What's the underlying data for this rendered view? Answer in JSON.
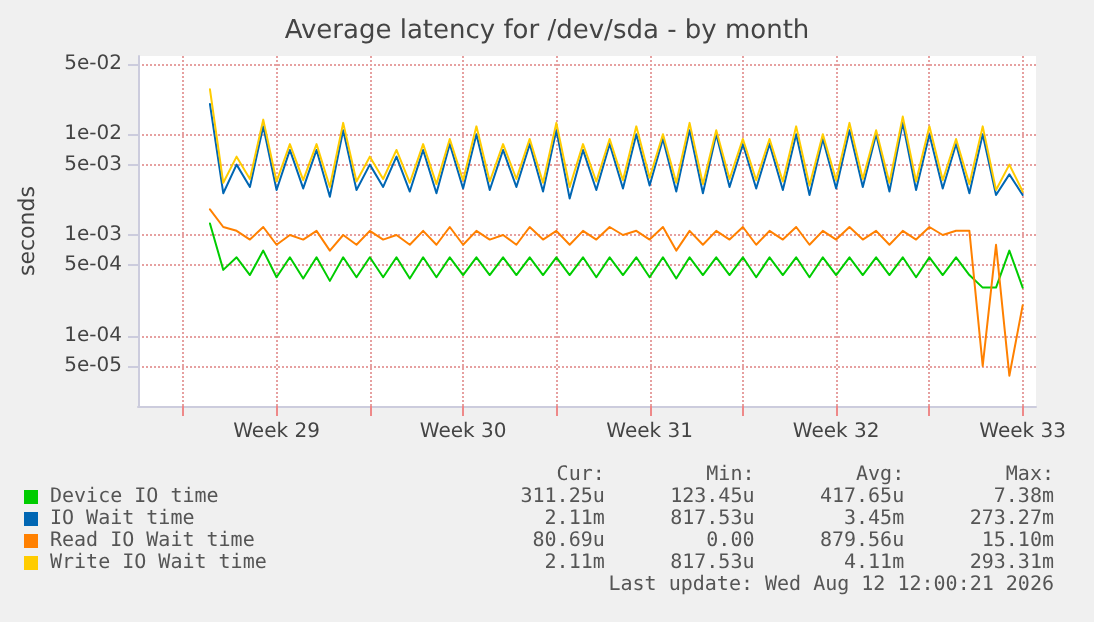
{
  "chart_data": {
    "type": "line",
    "title": "Average latency for /dev/sda - by month",
    "ylabel": "seconds",
    "x": [
      "2026-07-12T12:00",
      "2026-07-13T00:00",
      "2026-07-13T12:00",
      "2026-07-14T00:00",
      "2026-07-14T12:00",
      "2026-07-15T00:00",
      "2026-07-15T12:00",
      "2026-07-16T00:00",
      "2026-07-16T12:00",
      "2026-07-17T00:00",
      "2026-07-17T12:00",
      "2026-07-18T00:00",
      "2026-07-18T12:00",
      "2026-07-19T00:00",
      "2026-07-19T12:00",
      "2026-07-20T00:00",
      "2026-07-20T12:00",
      "2026-07-21T00:00",
      "2026-07-21T12:00",
      "2026-07-22T00:00",
      "2026-07-22T12:00",
      "2026-07-23T00:00",
      "2026-07-23T12:00",
      "2026-07-24T00:00",
      "2026-07-24T12:00",
      "2026-07-25T00:00",
      "2026-07-25T12:00",
      "2026-07-26T00:00",
      "2026-07-26T12:00",
      "2026-07-27T00:00",
      "2026-07-27T12:00",
      "2026-07-28T00:00",
      "2026-07-28T12:00",
      "2026-07-29T00:00",
      "2026-07-29T12:00",
      "2026-07-30T00:00",
      "2026-07-30T12:00",
      "2026-07-31T00:00",
      "2026-07-31T12:00",
      "2026-08-01T00:00",
      "2026-08-01T12:00",
      "2026-08-02T00:00",
      "2026-08-02T12:00",
      "2026-08-03T00:00",
      "2026-08-03T12:00",
      "2026-08-04T00:00",
      "2026-08-04T12:00",
      "2026-08-05T00:00",
      "2026-08-05T12:00",
      "2026-08-06T00:00",
      "2026-08-06T12:00",
      "2026-08-07T00:00",
      "2026-08-07T12:00",
      "2026-08-08T00:00",
      "2026-08-08T12:00",
      "2026-08-09T00:00",
      "2026-08-09T12:00",
      "2026-08-10T00:00",
      "2026-08-10T12:00",
      "2026-08-11T00:00",
      "2026-08-11T12:00",
      "2026-08-12T00:00"
    ],
    "series": [
      {
        "name": "Device IO time",
        "color": "#00cc00",
        "values": [
          0.0013,
          0.00045,
          0.0006,
          0.0004,
          0.0007,
          0.00038,
          0.0006,
          0.00037,
          0.0006,
          0.00035,
          0.0006,
          0.00038,
          0.0006,
          0.00038,
          0.0006,
          0.00037,
          0.0006,
          0.00038,
          0.0006,
          0.0004,
          0.0006,
          0.0004,
          0.0006,
          0.0004,
          0.0006,
          0.0004,
          0.0006,
          0.0004,
          0.0006,
          0.00038,
          0.0006,
          0.0004,
          0.0006,
          0.00038,
          0.0006,
          0.00037,
          0.0006,
          0.0004,
          0.0006,
          0.0004,
          0.0006,
          0.00038,
          0.0006,
          0.0004,
          0.0006,
          0.00038,
          0.0006,
          0.0004,
          0.0006,
          0.0004,
          0.0006,
          0.0004,
          0.0006,
          0.00038,
          0.0006,
          0.0004,
          0.0006,
          0.0004,
          0.0003,
          0.0003,
          0.0007,
          0.0003
        ]
      },
      {
        "name": "IO Wait time",
        "color": "#0066b3",
        "values": [
          0.02,
          0.0026,
          0.005,
          0.003,
          0.012,
          0.0028,
          0.007,
          0.0029,
          0.007,
          0.0024,
          0.011,
          0.0028,
          0.005,
          0.003,
          0.006,
          0.0027,
          0.007,
          0.0026,
          0.008,
          0.0029,
          0.01,
          0.0028,
          0.007,
          0.003,
          0.008,
          0.0027,
          0.011,
          0.0023,
          0.007,
          0.0028,
          0.008,
          0.0029,
          0.01,
          0.0031,
          0.009,
          0.0027,
          0.011,
          0.0026,
          0.01,
          0.003,
          0.008,
          0.0029,
          0.008,
          0.0028,
          0.01,
          0.0025,
          0.009,
          0.0029,
          0.011,
          0.003,
          0.01,
          0.0027,
          0.013,
          0.0028,
          0.01,
          0.0029,
          0.008,
          0.0026,
          0.01,
          0.0025,
          0.004,
          0.0025
        ]
      },
      {
        "name": "Read IO Wait time",
        "color": "#ff8000",
        "values": [
          0.0018,
          0.0012,
          0.0011,
          0.0009,
          0.0012,
          0.0008,
          0.001,
          0.0009,
          0.0011,
          0.0007,
          0.001,
          0.0008,
          0.0011,
          0.0009,
          0.001,
          0.0008,
          0.0011,
          0.0008,
          0.0012,
          0.0008,
          0.0011,
          0.0009,
          0.001,
          0.0008,
          0.0012,
          0.0009,
          0.0011,
          0.0008,
          0.0011,
          0.0009,
          0.0012,
          0.001,
          0.0011,
          0.0009,
          0.0012,
          0.0007,
          0.0011,
          0.0008,
          0.0011,
          0.0009,
          0.0012,
          0.0008,
          0.0011,
          0.0009,
          0.0012,
          0.0008,
          0.0011,
          0.0009,
          0.0012,
          0.0009,
          0.0011,
          0.0008,
          0.0011,
          0.0009,
          0.0012,
          0.001,
          0.0011,
          0.0011,
          5e-05,
          0.0008,
          4e-05,
          0.0002
        ]
      },
      {
        "name": "Write IO Wait time",
        "color": "#ffcc00",
        "values": [
          0.028,
          0.0033,
          0.006,
          0.0036,
          0.014,
          0.0034,
          0.008,
          0.0035,
          0.008,
          0.003,
          0.013,
          0.0034,
          0.006,
          0.0036,
          0.007,
          0.0033,
          0.008,
          0.0032,
          0.009,
          0.0035,
          0.012,
          0.0034,
          0.008,
          0.0036,
          0.009,
          0.0033,
          0.013,
          0.003,
          0.008,
          0.0034,
          0.009,
          0.0035,
          0.012,
          0.0037,
          0.01,
          0.0033,
          0.013,
          0.0032,
          0.011,
          0.0036,
          0.009,
          0.0035,
          0.009,
          0.0034,
          0.012,
          0.0031,
          0.01,
          0.0035,
          0.013,
          0.0036,
          0.011,
          0.0033,
          0.015,
          0.0034,
          0.012,
          0.0035,
          0.009,
          0.0032,
          0.012,
          0.0028,
          0.005,
          0.0027
        ]
      }
    ],
    "log": "y",
    "ylim": [
      2e-05,
      0.06
    ],
    "yticks": [
      {
        "value": 0.05,
        "label": "5e-02"
      },
      {
        "value": 0.01,
        "label": "1e-02"
      },
      {
        "value": 0.005,
        "label": "5e-03"
      },
      {
        "value": 0.001,
        "label": "1e-03"
      },
      {
        "value": 0.0005,
        "label": "5e-04"
      },
      {
        "value": 0.0001,
        "label": "1e-04"
      },
      {
        "value": 5e-05,
        "label": "5e-05"
      }
    ],
    "xlim": [
      "2026-07-09T19:12",
      "2026-08-12T12:00"
    ],
    "xticks": [
      {
        "value": "2026-07-11T12:00",
        "label": null
      },
      {
        "value": "2026-07-15T00:00",
        "label": "Week 29"
      },
      {
        "value": "2026-07-18T12:00",
        "label": null
      },
      {
        "value": "2026-07-22T00:00",
        "label": "Week 30"
      },
      {
        "value": "2026-07-25T12:00",
        "label": null
      },
      {
        "value": "2026-07-29T00:00",
        "label": "Week 31"
      },
      {
        "value": "2026-08-01T12:00",
        "label": null
      },
      {
        "value": "2026-08-05T00:00",
        "label": "Week 32"
      },
      {
        "value": "2026-08-08T12:00",
        "label": null
      },
      {
        "value": "2026-08-12T00:00",
        "label": "Week 33"
      }
    ],
    "grid": true,
    "legend": "bottom",
    "marker": "none",
    "line_style": "solid",
    "annotations": [
      "Cur:",
      "Min:",
      "Avg:",
      "Max:",
      "311.25u",
      "123.45u",
      "417.65u",
      "7.38m",
      "2.11m",
      "817.53u",
      "3.45m",
      "273.27m",
      "80.69u",
      "0.00",
      "879.56u",
      "15.10m",
      "2.11m",
      "817.53u",
      "4.11m",
      "293.31m",
      "Last update: Wed Aug 12 12:00:21 2026"
    ]
  }
}
